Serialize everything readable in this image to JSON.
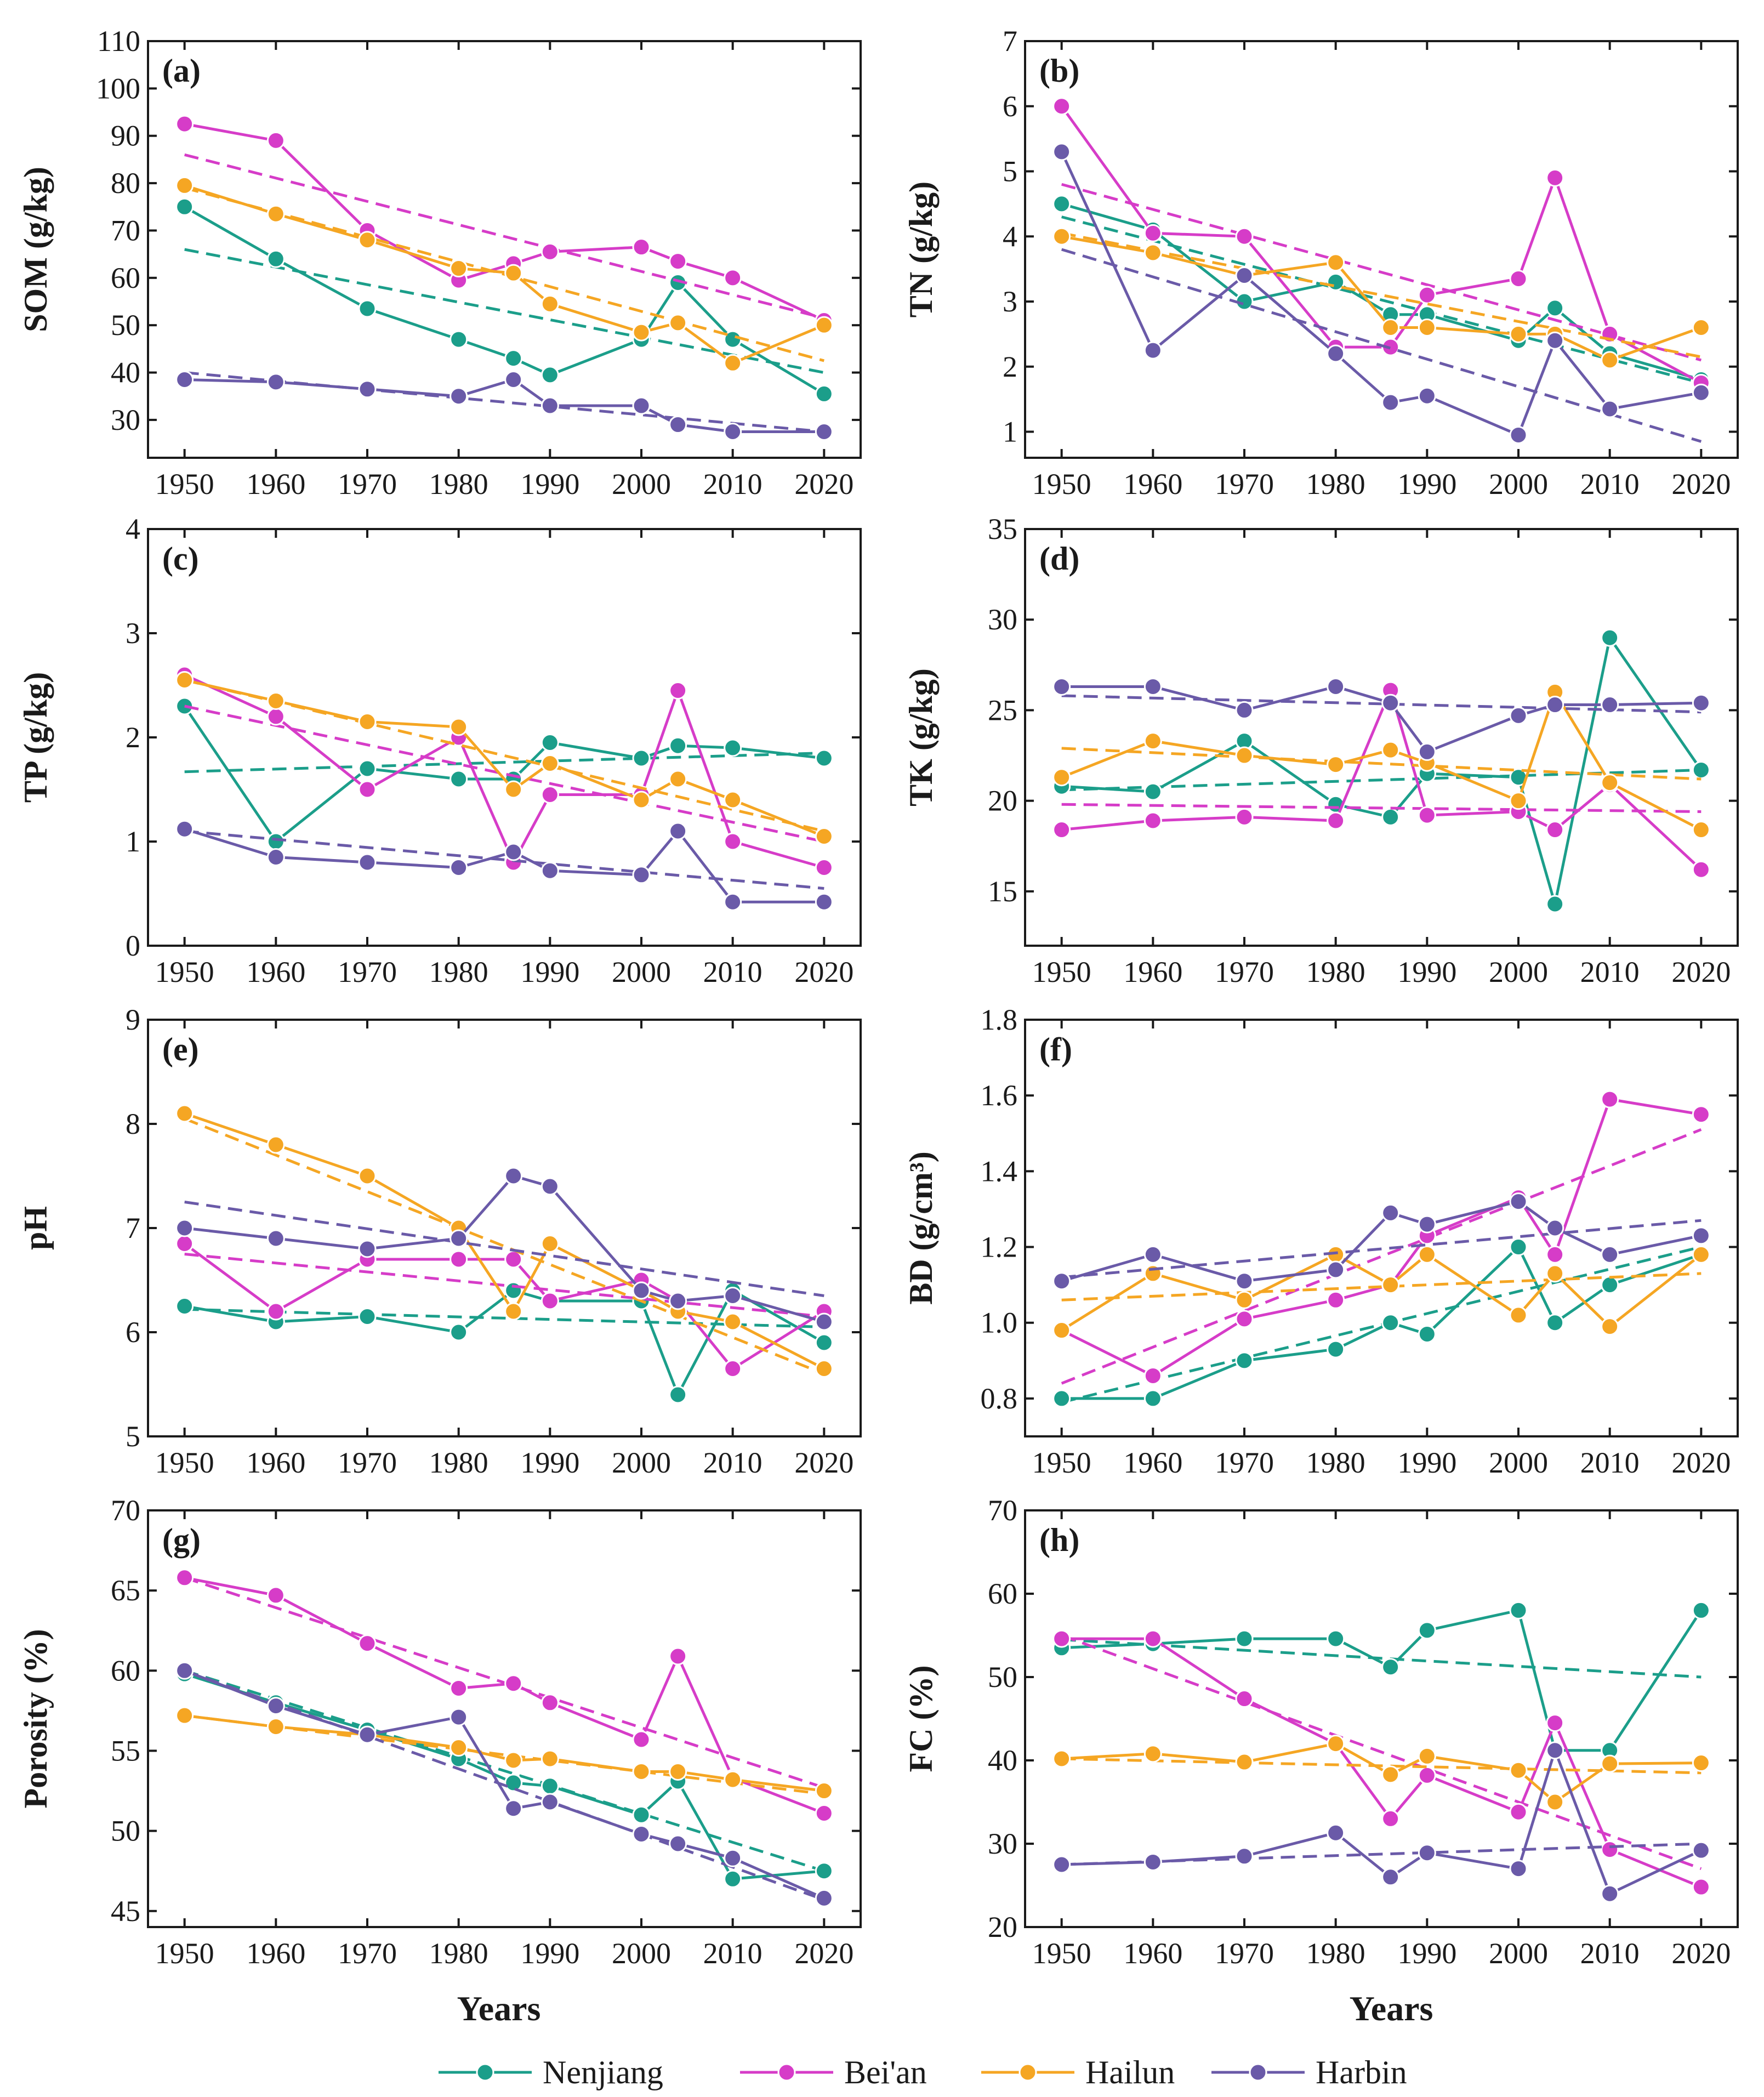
{
  "figure": {
    "x_axis_title": "Years",
    "legend_order": [
      "Nenjiang",
      "Bei'an",
      "Hailun",
      "Harbin"
    ]
  },
  "series_colors": {
    "Nenjiang": "#1b9e8a",
    "Bei'an": "#d63cc8",
    "Hailun": "#f5a623",
    "Harbin": "#6a5aa8"
  },
  "chart_data": [
    {
      "type": "line",
      "panel_label": "(a)",
      "ylabel": "SOM (g/kg)",
      "xlim": [
        1946,
        2024
      ],
      "ylim": [
        22,
        110
      ],
      "xticks": [
        1950,
        1960,
        1970,
        1980,
        1990,
        2000,
        2010,
        2020
      ],
      "yticks": [
        30,
        40,
        50,
        60,
        70,
        80,
        90,
        100,
        110
      ],
      "x": [
        1950,
        1960,
        1970,
        1980,
        1986,
        1990,
        2000,
        2004,
        2010,
        2020
      ],
      "series": [
        {
          "name": "Nenjiang",
          "values": [
            75,
            64,
            53.5,
            47,
            43,
            39.5,
            47,
            59,
            47,
            35.5
          ],
          "trend": [
            66,
            40
          ]
        },
        {
          "name": "Bei'an",
          "values": [
            92.5,
            89,
            70,
            59.5,
            63,
            65.5,
            66.5,
            63.5,
            60,
            51
          ],
          "trend": [
            86,
            51.5
          ]
        },
        {
          "name": "Hailun",
          "values": [
            79.5,
            73.5,
            68,
            62,
            61,
            54.5,
            48.5,
            50.5,
            42,
            50
          ],
          "trend": [
            79,
            42.5
          ]
        },
        {
          "name": "Harbin",
          "values": [
            38.5,
            38,
            36.5,
            35,
            38.5,
            33,
            33,
            29,
            27.5,
            27.5
          ],
          "trend": [
            40,
            27.5
          ]
        }
      ]
    },
    {
      "type": "line",
      "panel_label": "(b)",
      "ylabel": "TN (g/kg)",
      "xlim": [
        1946,
        2024
      ],
      "ylim": [
        0.6,
        7
      ],
      "xticks": [
        1950,
        1960,
        1970,
        1980,
        1990,
        2000,
        2010,
        2020
      ],
      "yticks": [
        1,
        2,
        3,
        4,
        5,
        6,
        7
      ],
      "x": [
        1950,
        1960,
        1970,
        1980,
        1986,
        1990,
        2000,
        2004,
        2010,
        2020
      ],
      "series": [
        {
          "name": "Nenjiang",
          "values": [
            4.5,
            4.1,
            3.0,
            3.3,
            2.8,
            2.8,
            2.4,
            2.9,
            2.2,
            1.8
          ],
          "trend": [
            4.3,
            1.75
          ]
        },
        {
          "name": "Bei'an",
          "values": [
            6.0,
            4.05,
            4.0,
            2.3,
            2.3,
            3.1,
            3.35,
            4.9,
            2.5,
            1.75
          ],
          "trend": [
            4.8,
            2.1
          ]
        },
        {
          "name": "Hailun",
          "values": [
            4.0,
            3.75,
            3.4,
            3.6,
            2.6,
            2.6,
            2.5,
            2.5,
            2.1,
            2.6
          ],
          "trend": [
            4.05,
            2.15
          ]
        },
        {
          "name": "Harbin",
          "values": [
            5.3,
            2.25,
            3.4,
            2.2,
            1.45,
            1.55,
            0.95,
            2.4,
            1.35,
            1.6
          ],
          "trend": [
            3.8,
            0.85
          ]
        }
      ]
    },
    {
      "type": "line",
      "panel_label": "(c)",
      "ylabel": "TP (g/kg)",
      "xlim": [
        1946,
        2024
      ],
      "ylim": [
        0,
        4
      ],
      "xticks": [
        1950,
        1960,
        1970,
        1980,
        1990,
        2000,
        2010,
        2020
      ],
      "yticks": [
        0,
        1,
        2,
        3,
        4
      ],
      "x": [
        1950,
        1960,
        1970,
        1980,
        1986,
        1990,
        2000,
        2004,
        2010,
        2020
      ],
      "series": [
        {
          "name": "Nenjiang",
          "values": [
            2.3,
            1.0,
            1.7,
            1.6,
            1.6,
            1.95,
            1.8,
            1.92,
            1.9,
            1.8
          ],
          "trend": [
            1.67,
            1.85
          ]
        },
        {
          "name": "Bei'an",
          "values": [
            2.6,
            2.2,
            1.5,
            2.0,
            0.8,
            1.45,
            1.45,
            2.45,
            1.0,
            0.75
          ],
          "trend": [
            2.3,
            1.0
          ]
        },
        {
          "name": "Hailun",
          "values": [
            2.55,
            2.35,
            2.15,
            2.1,
            1.5,
            1.75,
            1.4,
            1.6,
            1.4,
            1.05
          ],
          "trend": [
            2.55,
            1.1
          ]
        },
        {
          "name": "Harbin",
          "values": [
            1.12,
            0.85,
            0.8,
            0.75,
            0.9,
            0.72,
            0.68,
            1.1,
            0.42,
            0.42
          ],
          "trend": [
            1.1,
            0.55
          ]
        }
      ]
    },
    {
      "type": "line",
      "panel_label": "(d)",
      "ylabel": "TK (g/kg)",
      "xlim": [
        1946,
        2024
      ],
      "ylim": [
        12,
        35
      ],
      "xticks": [
        1950,
        1960,
        1970,
        1980,
        1990,
        2000,
        2010,
        2020
      ],
      "yticks": [
        15,
        20,
        25,
        30,
        35
      ],
      "x": [
        1950,
        1960,
        1970,
        1980,
        1986,
        1990,
        2000,
        2004,
        2010,
        2020
      ],
      "series": [
        {
          "name": "Nenjiang",
          "values": [
            20.8,
            20.5,
            23.3,
            19.8,
            19.1,
            21.5,
            21.3,
            14.3,
            29.0,
            21.7
          ],
          "trend": [
            20.6,
            21.7
          ]
        },
        {
          "name": "Bei'an",
          "values": [
            18.4,
            18.9,
            19.1,
            18.9,
            26.1,
            19.2,
            19.4,
            18.4,
            20.9,
            16.2
          ],
          "trend": [
            19.8,
            19.4
          ]
        },
        {
          "name": "Hailun",
          "values": [
            21.3,
            23.3,
            22.5,
            22.0,
            22.8,
            22.1,
            20.0,
            26.0,
            21.0,
            18.4
          ],
          "trend": [
            22.9,
            21.2
          ]
        },
        {
          "name": "Harbin",
          "values": [
            26.3,
            26.3,
            25.0,
            26.3,
            25.4,
            22.7,
            24.7,
            25.3,
            25.3,
            25.4
          ],
          "trend": [
            25.8,
            24.9
          ]
        }
      ]
    },
    {
      "type": "line",
      "panel_label": "(e)",
      "ylabel": "pH",
      "xlim": [
        1946,
        2024
      ],
      "ylim": [
        5,
        9
      ],
      "xticks": [
        1950,
        1960,
        1970,
        1980,
        1990,
        2000,
        2010,
        2020
      ],
      "yticks": [
        5,
        6,
        7,
        8,
        9
      ],
      "x": [
        1950,
        1960,
        1970,
        1980,
        1986,
        1990,
        2000,
        2004,
        2010,
        2020
      ],
      "series": [
        {
          "name": "Nenjiang",
          "values": [
            6.25,
            6.1,
            6.15,
            6.0,
            6.4,
            6.3,
            6.3,
            5.4,
            6.4,
            5.9
          ],
          "trend": [
            6.22,
            6.05
          ]
        },
        {
          "name": "Bei'an",
          "values": [
            6.85,
            6.2,
            6.7,
            6.7,
            6.7,
            6.3,
            6.5,
            6.3,
            5.65,
            6.2
          ],
          "trend": [
            6.75,
            6.15
          ]
        },
        {
          "name": "Hailun",
          "values": [
            8.1,
            7.8,
            7.5,
            7.0,
            6.2,
            6.85,
            6.4,
            6.2,
            6.1,
            5.65
          ],
          "trend": [
            8.05,
            5.6
          ]
        },
        {
          "name": "Harbin",
          "values": [
            7.0,
            6.9,
            6.8,
            6.9,
            7.5,
            7.4,
            6.4,
            6.3,
            6.35,
            6.1
          ],
          "trend": [
            7.25,
            6.35
          ]
        }
      ]
    },
    {
      "type": "line",
      "panel_label": "(f)",
      "ylabel": "BD (g/cm³)",
      "xlim": [
        1946,
        2024
      ],
      "ylim": [
        0.7,
        1.8
      ],
      "xticks": [
        1950,
        1960,
        1970,
        1980,
        1990,
        2000,
        2010,
        2020
      ],
      "yticks": [
        0.8,
        1.0,
        1.2,
        1.4,
        1.6,
        1.8
      ],
      "ytick_decimals": 1,
      "x": [
        1950,
        1960,
        1970,
        1980,
        1986,
        1990,
        2000,
        2004,
        2010,
        2020
      ],
      "series": [
        {
          "name": "Nenjiang",
          "values": [
            0.8,
            0.8,
            0.9,
            0.93,
            1.0,
            0.97,
            1.2,
            1.0,
            1.1,
            1.18
          ],
          "trend": [
            0.79,
            1.2
          ]
        },
        {
          "name": "Bei'an",
          "values": [
            0.98,
            0.86,
            1.01,
            1.06,
            1.1,
            1.23,
            1.33,
            1.18,
            1.59,
            1.55
          ],
          "trend": [
            0.84,
            1.51
          ]
        },
        {
          "name": "Hailun",
          "values": [
            0.98,
            1.13,
            1.06,
            1.18,
            1.1,
            1.18,
            1.02,
            1.13,
            0.99,
            1.18
          ],
          "trend": [
            1.06,
            1.13
          ]
        },
        {
          "name": "Harbin",
          "values": [
            1.11,
            1.18,
            1.11,
            1.14,
            1.29,
            1.26,
            1.32,
            1.25,
            1.18,
            1.23
          ],
          "trend": [
            1.12,
            1.27
          ]
        }
      ]
    },
    {
      "type": "line",
      "panel_label": "(g)",
      "ylabel": "Porosity (%)",
      "xlim": [
        1946,
        2024
      ],
      "ylim": [
        44,
        70
      ],
      "xticks": [
        1950,
        1960,
        1970,
        1980,
        1990,
        2000,
        2010,
        2020
      ],
      "yticks": [
        45,
        50,
        55,
        60,
        65,
        70
      ],
      "x": [
        1950,
        1960,
        1970,
        1980,
        1986,
        1990,
        2000,
        2004,
        2010,
        2020
      ],
      "series": [
        {
          "name": "Nenjiang",
          "values": [
            59.8,
            58.0,
            56.3,
            54.5,
            53.0,
            52.8,
            51.0,
            53.1,
            47.0,
            47.5
          ],
          "trend": [
            60.0,
            47.5
          ]
        },
        {
          "name": "Bei'an",
          "values": [
            65.8,
            64.7,
            61.7,
            58.9,
            59.2,
            58.0,
            55.7,
            60.9,
            53.3,
            51.1
          ],
          "trend": [
            65.8,
            52.7
          ]
        },
        {
          "name": "Hailun",
          "values": [
            57.2,
            56.5,
            56.0,
            55.2,
            54.4,
            54.5,
            53.7,
            53.7,
            53.2,
            52.5
          ],
          "trend": [
            57.2,
            52.3
          ]
        },
        {
          "name": "Harbin",
          "values": [
            60.0,
            57.8,
            56.0,
            57.1,
            51.4,
            51.8,
            49.8,
            49.2,
            48.3,
            45.8
          ],
          "trend": [
            60.0,
            45.7
          ]
        }
      ]
    },
    {
      "type": "line",
      "panel_label": "(h)",
      "ylabel": "FC (%)",
      "xlim": [
        1946,
        2024
      ],
      "ylim": [
        20,
        70
      ],
      "xticks": [
        1950,
        1960,
        1970,
        1980,
        1990,
        2000,
        2010,
        2020
      ],
      "yticks": [
        20,
        30,
        40,
        50,
        60,
        70
      ],
      "x": [
        1950,
        1960,
        1970,
        1980,
        1986,
        1990,
        2000,
        2004,
        2010,
        2020
      ],
      "series": [
        {
          "name": "Nenjiang",
          "values": [
            53.5,
            54.0,
            54.6,
            54.6,
            51.2,
            55.6,
            58.0,
            41.2,
            41.2,
            58.0
          ],
          "trend": [
            54.5,
            50.0
          ]
        },
        {
          "name": "Bei'an",
          "values": [
            54.6,
            54.6,
            47.4,
            42.0,
            33.0,
            38.2,
            33.8,
            44.5,
            29.3,
            24.8
          ],
          "trend": [
            55.0,
            27.0
          ]
        },
        {
          "name": "Hailun",
          "values": [
            40.2,
            40.8,
            39.8,
            42.0,
            38.3,
            40.5,
            38.8,
            35.0,
            39.6,
            39.7
          ],
          "trend": [
            40.2,
            38.5
          ]
        },
        {
          "name": "Harbin",
          "values": [
            27.5,
            27.8,
            28.5,
            31.3,
            26.0,
            28.9,
            27.0,
            41.2,
            24.0,
            29.2
          ],
          "trend": [
            27.5,
            30.0
          ]
        }
      ]
    }
  ]
}
